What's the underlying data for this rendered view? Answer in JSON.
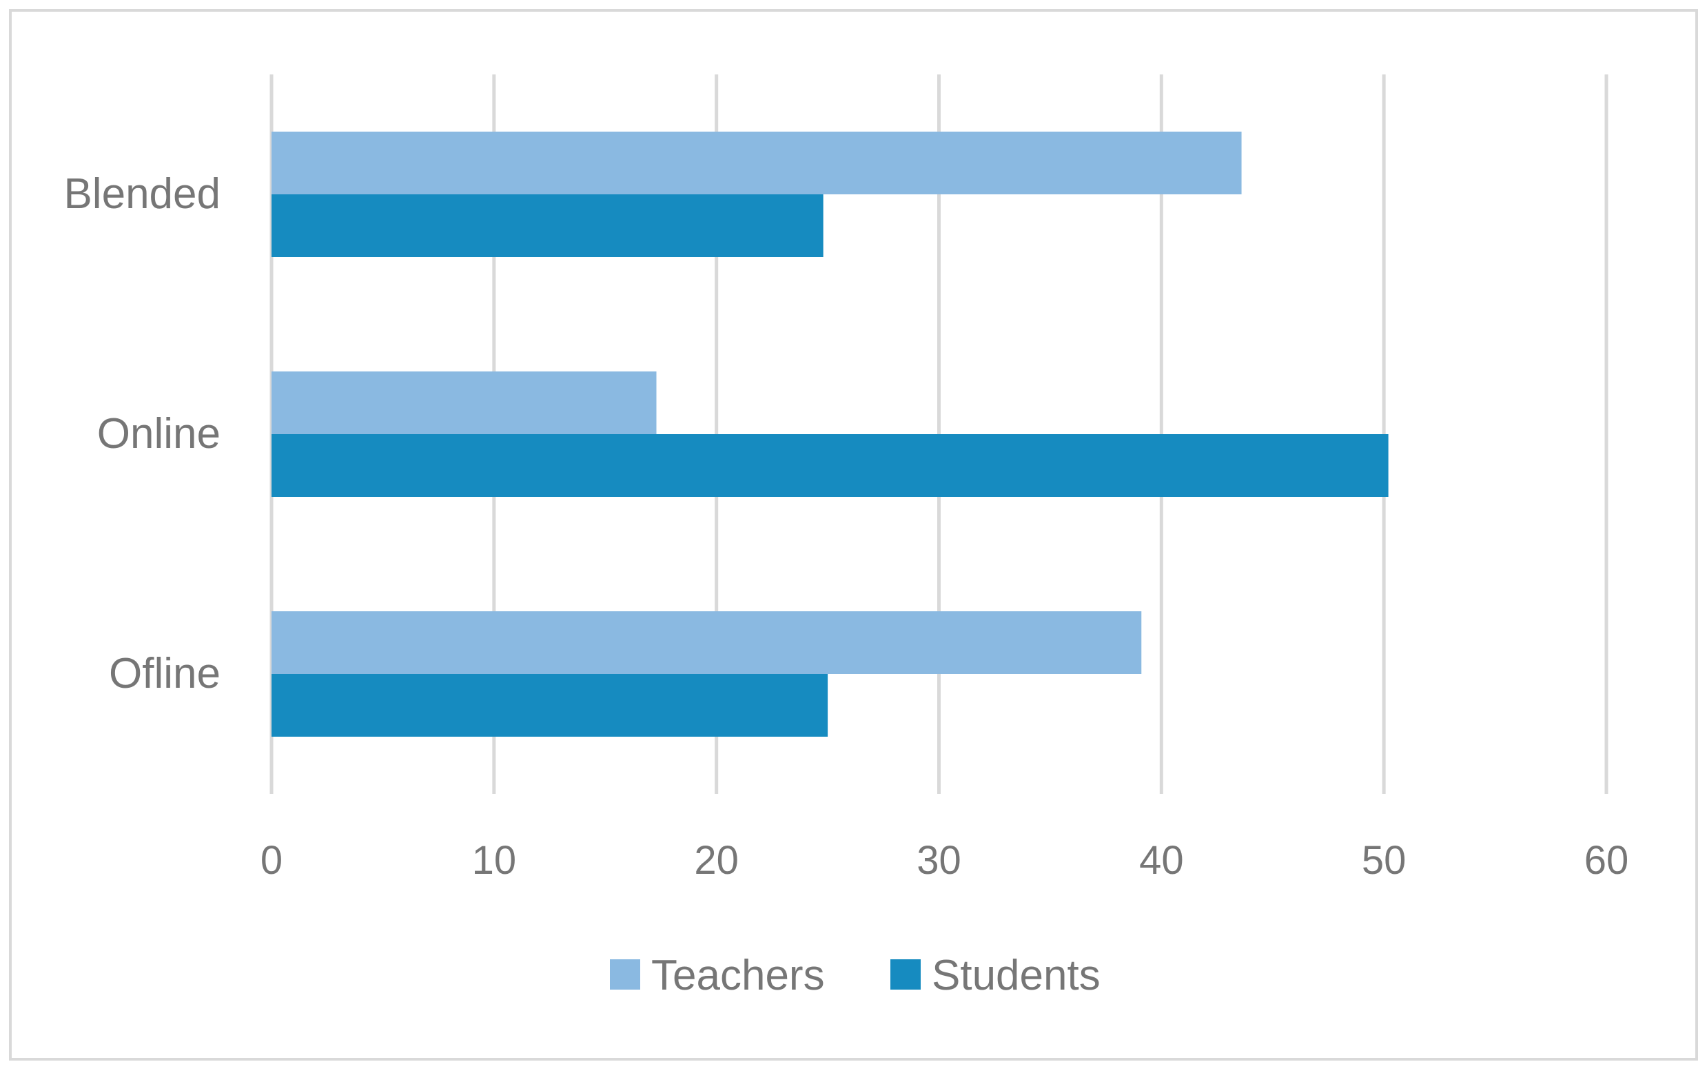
{
  "chart_data": {
    "type": "bar",
    "orientation": "horizontal",
    "categories": [
      "Blended",
      "Online",
      "Ofline"
    ],
    "series": [
      {
        "name": "Teachers",
        "values": [
          43.6,
          17.3,
          39.1
        ],
        "color": "#8ab9e1"
      },
      {
        "name": "Students",
        "values": [
          24.8,
          50.2,
          25.0
        ],
        "color": "#168bc0"
      }
    ],
    "xlim": [
      0,
      60
    ],
    "xticks": [
      "0",
      "10",
      "20",
      "30",
      "40",
      "50",
      "60"
    ],
    "grid": "vertical",
    "legend": "bottom",
    "title": "",
    "xlabel": "",
    "ylabel": ""
  },
  "colors": {
    "grid": "#d9d9d9",
    "text": "#767676",
    "border": "#d9d9d9"
  }
}
